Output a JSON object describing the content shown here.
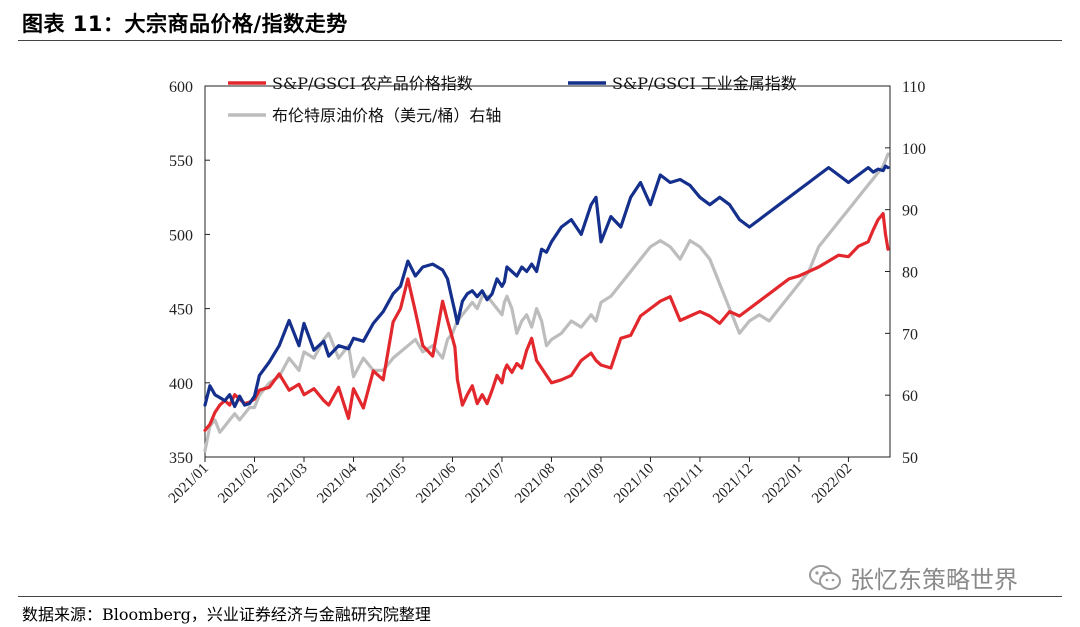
{
  "header": {
    "title": "图表 11：大宗商品价格/指数走势"
  },
  "footer": {
    "source": "数据来源：Bloomberg，兴业证券经济与金融研究院整理"
  },
  "watermark": {
    "text": "张忆东策略世界",
    "icon": "wechat-icon"
  },
  "colors": {
    "agri": "#e2282c",
    "metal": "#142f8c",
    "oil": "#bdbdbd"
  },
  "chart_data": {
    "type": "line",
    "title": "大宗商品价格/指数走势",
    "x_tick_labels": [
      "2021/01",
      "2021/02",
      "2021/03",
      "2021/04",
      "2021/05",
      "2021/06",
      "2021/07",
      "2021/08",
      "2021/09",
      "2021/10",
      "2021/11",
      "2021/12",
      "2022/01",
      "2022/02"
    ],
    "x_range": [
      0,
      13.84
    ],
    "left_axis": {
      "range": [
        350,
        600
      ],
      "ticks": [
        350,
        400,
        450,
        500,
        550,
        600
      ]
    },
    "right_axis": {
      "range": [
        50,
        110
      ],
      "ticks": [
        50,
        60,
        70,
        80,
        90,
        100,
        110
      ],
      "label": "右轴"
    },
    "legend": [
      "S&P/GSCI 农产品价格指数",
      "S&P/GSCI 工业金属指数",
      "布伦特原油价格（美元/桶）右轴"
    ],
    "series": [
      {
        "name": "S&P/GSCI 农产品价格指数",
        "axis": "left",
        "x": [
          0,
          0.1,
          0.2,
          0.3,
          0.4,
          0.5,
          0.6,
          0.7,
          0.8,
          0.9,
          1.0,
          1.1,
          1.3,
          1.5,
          1.7,
          1.9,
          2.0,
          2.2,
          2.4,
          2.5,
          2.7,
          2.9,
          3.0,
          3.2,
          3.4,
          3.6,
          3.8,
          3.95,
          4.1,
          4.25,
          4.4,
          4.6,
          4.8,
          4.9,
          5.0,
          5.05,
          5.1,
          5.2,
          5.3,
          5.4,
          5.5,
          5.6,
          5.7,
          5.8,
          5.9,
          6.0,
          6.05,
          6.1,
          6.2,
          6.3,
          6.4,
          6.5,
          6.6,
          6.7,
          6.8,
          6.9,
          7.0,
          7.2,
          7.4,
          7.6,
          7.8,
          7.9,
          8.0,
          8.2,
          8.4,
          8.6,
          8.8,
          9.0,
          9.2,
          9.4,
          9.6,
          9.8,
          10.0,
          10.2,
          10.4,
          10.6,
          10.8,
          11.0,
          11.2,
          11.4,
          11.6,
          11.8,
          12.0,
          12.2,
          12.4,
          12.6,
          12.8,
          13.0,
          13.2,
          13.4,
          13.5,
          13.6,
          13.7,
          13.75,
          13.8
        ],
        "values": [
          368,
          372,
          380,
          385,
          388,
          385,
          392,
          389,
          386,
          387,
          389,
          395,
          397,
          406,
          395,
          399,
          392,
          396,
          388,
          385,
          397,
          376,
          396,
          383,
          408,
          402,
          441,
          450,
          470,
          448,
          425,
          418,
          455,
          442,
          430,
          424,
          402,
          385,
          392,
          398,
          386,
          392,
          386,
          395,
          405,
          400,
          408,
          412,
          407,
          413,
          410,
          422,
          430,
          415,
          410,
          405,
          400,
          402,
          405,
          415,
          420,
          415,
          412,
          410,
          430,
          432,
          445,
          450,
          455,
          458,
          442,
          445,
          448,
          445,
          440,
          448,
          445,
          450,
          455,
          460,
          465,
          470,
          472,
          475,
          478,
          482,
          486,
          485,
          492,
          495,
          503,
          510,
          514,
          500,
          490
        ]
      },
      {
        "name": "S&P/GSCI 工业金属指数",
        "axis": "left",
        "x": [
          0,
          0.1,
          0.2,
          0.3,
          0.4,
          0.5,
          0.6,
          0.7,
          0.8,
          0.9,
          1.0,
          1.1,
          1.3,
          1.5,
          1.7,
          1.9,
          2.0,
          2.2,
          2.4,
          2.5,
          2.7,
          2.9,
          3.0,
          3.2,
          3.4,
          3.6,
          3.8,
          3.95,
          4.1,
          4.25,
          4.4,
          4.6,
          4.8,
          4.9,
          5.0,
          5.05,
          5.1,
          5.2,
          5.3,
          5.4,
          5.5,
          5.6,
          5.7,
          5.8,
          5.9,
          6.0,
          6.05,
          6.1,
          6.2,
          6.3,
          6.4,
          6.5,
          6.6,
          6.7,
          6.8,
          6.9,
          7.0,
          7.2,
          7.4,
          7.6,
          7.8,
          7.9,
          8.0,
          8.2,
          8.4,
          8.6,
          8.8,
          9.0,
          9.2,
          9.4,
          9.6,
          9.8,
          10.0,
          10.2,
          10.4,
          10.6,
          10.8,
          11.0,
          11.2,
          11.4,
          11.6,
          11.8,
          12.0,
          12.2,
          12.4,
          12.6,
          12.8,
          13.0,
          13.2,
          13.4,
          13.5,
          13.6,
          13.7,
          13.75,
          13.8
        ],
        "values": [
          385,
          398,
          392,
          390,
          388,
          392,
          384,
          391,
          385,
          386,
          391,
          405,
          414,
          425,
          442,
          425,
          440,
          422,
          428,
          418,
          425,
          423,
          430,
          428,
          440,
          448,
          460,
          465,
          482,
          472,
          478,
          480,
          476,
          470,
          455,
          448,
          440,
          455,
          460,
          462,
          458,
          462,
          456,
          460,
          470,
          465,
          468,
          478,
          475,
          472,
          478,
          475,
          480,
          475,
          490,
          488,
          495,
          505,
          510,
          500,
          520,
          525,
          495,
          512,
          505,
          525,
          535,
          520,
          540,
          535,
          537,
          533,
          525,
          520,
          525,
          520,
          510,
          505,
          510,
          515,
          520,
          525,
          530,
          535,
          540,
          545,
          540,
          535,
          540,
          545,
          542,
          544,
          543,
          546,
          545
        ]
      },
      {
        "name": "布伦特原油价格（美元/桶）",
        "axis": "right",
        "x": [
          0,
          0.1,
          0.2,
          0.3,
          0.4,
          0.5,
          0.6,
          0.7,
          0.8,
          0.9,
          1.0,
          1.1,
          1.3,
          1.5,
          1.7,
          1.9,
          2.0,
          2.2,
          2.4,
          2.5,
          2.7,
          2.9,
          3.0,
          3.2,
          3.4,
          3.6,
          3.8,
          3.95,
          4.1,
          4.25,
          4.4,
          4.6,
          4.8,
          4.9,
          5.0,
          5.05,
          5.1,
          5.2,
          5.3,
          5.4,
          5.5,
          5.6,
          5.7,
          5.8,
          5.9,
          6.0,
          6.05,
          6.1,
          6.2,
          6.3,
          6.4,
          6.5,
          6.6,
          6.7,
          6.8,
          6.9,
          7.0,
          7.2,
          7.4,
          7.6,
          7.8,
          7.9,
          8.0,
          8.2,
          8.4,
          8.6,
          8.8,
          9.0,
          9.2,
          9.4,
          9.6,
          9.8,
          10.0,
          10.2,
          10.4,
          10.6,
          10.8,
          11.0,
          11.2,
          11.4,
          11.6,
          11.8,
          12.0,
          12.2,
          12.4,
          12.6,
          12.8,
          13.0,
          13.2,
          13.4,
          13.5,
          13.6,
          13.7,
          13.75,
          13.8
        ],
        "values": [
          51,
          55,
          56,
          54,
          55,
          56,
          57,
          56,
          57,
          58,
          58,
          60,
          62,
          63,
          66,
          64,
          67,
          66,
          69,
          70,
          66,
          68,
          63,
          66,
          64,
          64,
          66,
          67,
          68,
          69,
          67,
          68,
          66,
          69,
          70,
          71,
          72,
          73,
          74,
          75,
          74,
          76,
          76,
          75,
          74,
          73,
          75,
          76,
          74,
          70,
          72,
          73,
          71,
          74,
          72,
          68,
          69,
          70,
          72,
          71,
          73,
          72,
          75,
          76,
          78,
          80,
          82,
          84,
          85,
          84,
          82,
          85,
          84,
          82,
          78,
          74,
          70,
          72,
          73,
          72,
          74,
          76,
          78,
          80,
          84,
          86,
          88,
          90,
          92,
          94,
          95,
          96,
          97,
          98,
          99
        ]
      }
    ]
  }
}
